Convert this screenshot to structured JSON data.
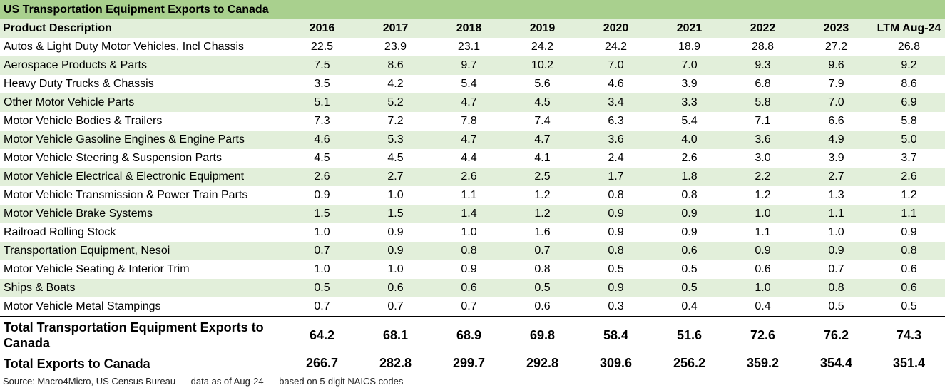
{
  "title": "US Transportation Equipment Exports to Canada",
  "chart_data": {
    "type": "table",
    "title": "US Transportation Equipment Exports to Canada",
    "header_label": "Product Description",
    "columns": [
      "2016",
      "2017",
      "2018",
      "2019",
      "2020",
      "2021",
      "2022",
      "2023",
      "LTM Aug-24"
    ],
    "rows": [
      {
        "label": "Autos & Light Duty Motor Vehicles, Incl Chassis",
        "values": [
          "22.5",
          "23.9",
          "23.1",
          "24.2",
          "24.2",
          "18.9",
          "28.8",
          "27.2",
          "26.8"
        ]
      },
      {
        "label": "Aerospace Products & Parts",
        "values": [
          "7.5",
          "8.6",
          "9.7",
          "10.2",
          "7.0",
          "7.0",
          "9.3",
          "9.6",
          "9.2"
        ]
      },
      {
        "label": "Heavy Duty Trucks & Chassis",
        "values": [
          "3.5",
          "4.2",
          "5.4",
          "5.6",
          "4.6",
          "3.9",
          "6.8",
          "7.9",
          "8.6"
        ]
      },
      {
        "label": "Other Motor Vehicle Parts",
        "values": [
          "5.1",
          "5.2",
          "4.7",
          "4.5",
          "3.4",
          "3.3",
          "5.8",
          "7.0",
          "6.9"
        ]
      },
      {
        "label": "Motor Vehicle Bodies & Trailers",
        "values": [
          "7.3",
          "7.2",
          "7.8",
          "7.4",
          "6.3",
          "5.4",
          "7.1",
          "6.6",
          "5.8"
        ]
      },
      {
        "label": "Motor Vehicle Gasoline Engines & Engine Parts",
        "values": [
          "4.6",
          "5.3",
          "4.7",
          "4.7",
          "3.6",
          "4.0",
          "3.6",
          "4.9",
          "5.0"
        ]
      },
      {
        "label": "Motor Vehicle Steering & Suspension Parts",
        "values": [
          "4.5",
          "4.5",
          "4.4",
          "4.1",
          "2.4",
          "2.6",
          "3.0",
          "3.9",
          "3.7"
        ]
      },
      {
        "label": "Motor Vehicle Electrical & Electronic Equipment",
        "values": [
          "2.6",
          "2.7",
          "2.6",
          "2.5",
          "1.7",
          "1.8",
          "2.2",
          "2.7",
          "2.6"
        ]
      },
      {
        "label": "Motor Vehicle Transmission & Power Train Parts",
        "values": [
          "0.9",
          "1.0",
          "1.1",
          "1.2",
          "0.8",
          "0.8",
          "1.2",
          "1.3",
          "1.2"
        ]
      },
      {
        "label": "Motor Vehicle Brake Systems",
        "values": [
          "1.5",
          "1.5",
          "1.4",
          "1.2",
          "0.9",
          "0.9",
          "1.0",
          "1.1",
          "1.1"
        ]
      },
      {
        "label": "Railroad Rolling Stock",
        "values": [
          "1.0",
          "0.9",
          "1.0",
          "1.6",
          "0.9",
          "0.9",
          "1.1",
          "1.0",
          "0.9"
        ]
      },
      {
        "label": "Transportation Equipment, Nesoi",
        "values": [
          "0.7",
          "0.9",
          "0.8",
          "0.7",
          "0.8",
          "0.6",
          "0.9",
          "0.9",
          "0.8"
        ]
      },
      {
        "label": "Motor Vehicle Seating & Interior Trim",
        "values": [
          "1.0",
          "1.0",
          "0.9",
          "0.8",
          "0.5",
          "0.5",
          "0.6",
          "0.7",
          "0.6"
        ]
      },
      {
        "label": "Ships & Boats",
        "values": [
          "0.5",
          "0.6",
          "0.6",
          "0.5",
          "0.9",
          "0.5",
          "1.0",
          "0.8",
          "0.6"
        ]
      },
      {
        "label": "Motor Vehicle Metal Stampings",
        "values": [
          "0.7",
          "0.7",
          "0.7",
          "0.6",
          "0.3",
          "0.4",
          "0.4",
          "0.5",
          "0.5"
        ]
      }
    ],
    "totals": [
      {
        "label": "Total Transportation Equipment Exports to Canada",
        "values": [
          "64.2",
          "68.1",
          "68.9",
          "69.8",
          "58.4",
          "51.6",
          "72.6",
          "76.2",
          "74.3"
        ]
      },
      {
        "label": "Total Exports to Canada",
        "values": [
          "266.7",
          "282.8",
          "299.7",
          "292.8",
          "309.6",
          "256.2",
          "359.2",
          "354.4",
          "351.4"
        ]
      }
    ]
  },
  "colors": {
    "title_band": "#a9d08e",
    "stripe": "#e2efda"
  },
  "footer": {
    "source": "Source: Macro4Micro, US Census Bureau",
    "asof": "data as of Aug-24",
    "basis": "based on 5-digit NAICS codes"
  }
}
